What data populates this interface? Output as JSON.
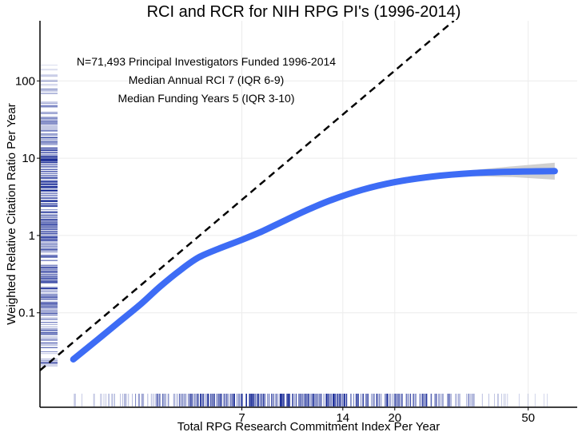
{
  "chart_data": {
    "type": "line",
    "title": "RCI and RCR for NIH RPG PI's (1996-2014)",
    "xlabel": "Total RPG Research Commitment Index Per Year",
    "ylabel": "Weighted Relative Citation Ratio Per Year",
    "x_scale": "log",
    "y_scale": "log",
    "xlim": [
      1.75,
      70
    ],
    "ylim": [
      0.006,
      600
    ],
    "x_ticks": [
      7,
      14,
      20,
      50
    ],
    "x_tick_labels": [
      "7",
      "14",
      "20",
      "50"
    ],
    "y_ticks": [
      0.1,
      1,
      10,
      100
    ],
    "y_tick_labels": [
      "0.1",
      "1",
      "10",
      "100"
    ],
    "grid": true,
    "annotations": [
      "N=71,493 Principal Investigators Funded 1996-2014",
      "Median Annual RCI 7 (IQR 6-9)",
      "Median Funding Years 5 (IQR 3-10)"
    ],
    "series": [
      {
        "style": "smooth-fit",
        "color": "#3d6cf5",
        "band_color": "#c8c8c8",
        "x": [
          2.2,
          2.6,
          3.0,
          3.5,
          4.0,
          4.6,
          5.2,
          6.0,
          7.0,
          8.0,
          9.5,
          11,
          13,
          16,
          20,
          26,
          34,
          45,
          60
        ],
        "y": [
          0.025,
          0.045,
          0.075,
          0.13,
          0.22,
          0.36,
          0.52,
          0.68,
          0.88,
          1.12,
          1.6,
          2.15,
          2.9,
          3.9,
          4.9,
          5.8,
          6.4,
          6.7,
          6.8
        ],
        "band_halfwidth_log": [
          0.02,
          0.02,
          0.02,
          0.02,
          0.02,
          0.02,
          0.02,
          0.02,
          0.02,
          0.02,
          0.02,
          0.02,
          0.02,
          0.02,
          0.02,
          0.025,
          0.04,
          0.07,
          0.11
        ]
      },
      {
        "style": "dashed-reference",
        "color": "#000000",
        "x": [
          1.75,
          30
        ],
        "y": [
          0.018,
          600
        ]
      }
    ],
    "y_rug": {
      "color": "#00158c",
      "density": [
        {
          "y": 0.02,
          "weight": 0.5
        },
        {
          "y": 0.04,
          "weight": 0.7
        },
        {
          "y": 0.1,
          "weight": 0.85
        },
        {
          "y": 0.3,
          "weight": 0.95
        },
        {
          "y": 1,
          "weight": 1
        },
        {
          "y": 3,
          "weight": 1
        },
        {
          "y": 10,
          "weight": 0.95
        },
        {
          "y": 30,
          "weight": 0.7
        },
        {
          "y": 100,
          "weight": 0.3
        },
        {
          "y": 200,
          "weight": 0.08
        }
      ]
    },
    "x_rug": {
      "color": "#00158c",
      "density": [
        {
          "x": 2.2,
          "weight": 0.15
        },
        {
          "x": 3,
          "weight": 0.3
        },
        {
          "x": 4,
          "weight": 0.5
        },
        {
          "x": 5,
          "weight": 0.85
        },
        {
          "x": 7,
          "weight": 1
        },
        {
          "x": 10,
          "weight": 1
        },
        {
          "x": 14,
          "weight": 0.95
        },
        {
          "x": 20,
          "weight": 0.8
        },
        {
          "x": 30,
          "weight": 0.45
        },
        {
          "x": 45,
          "weight": 0.15
        },
        {
          "x": 60,
          "weight": 0.05
        }
      ]
    }
  }
}
